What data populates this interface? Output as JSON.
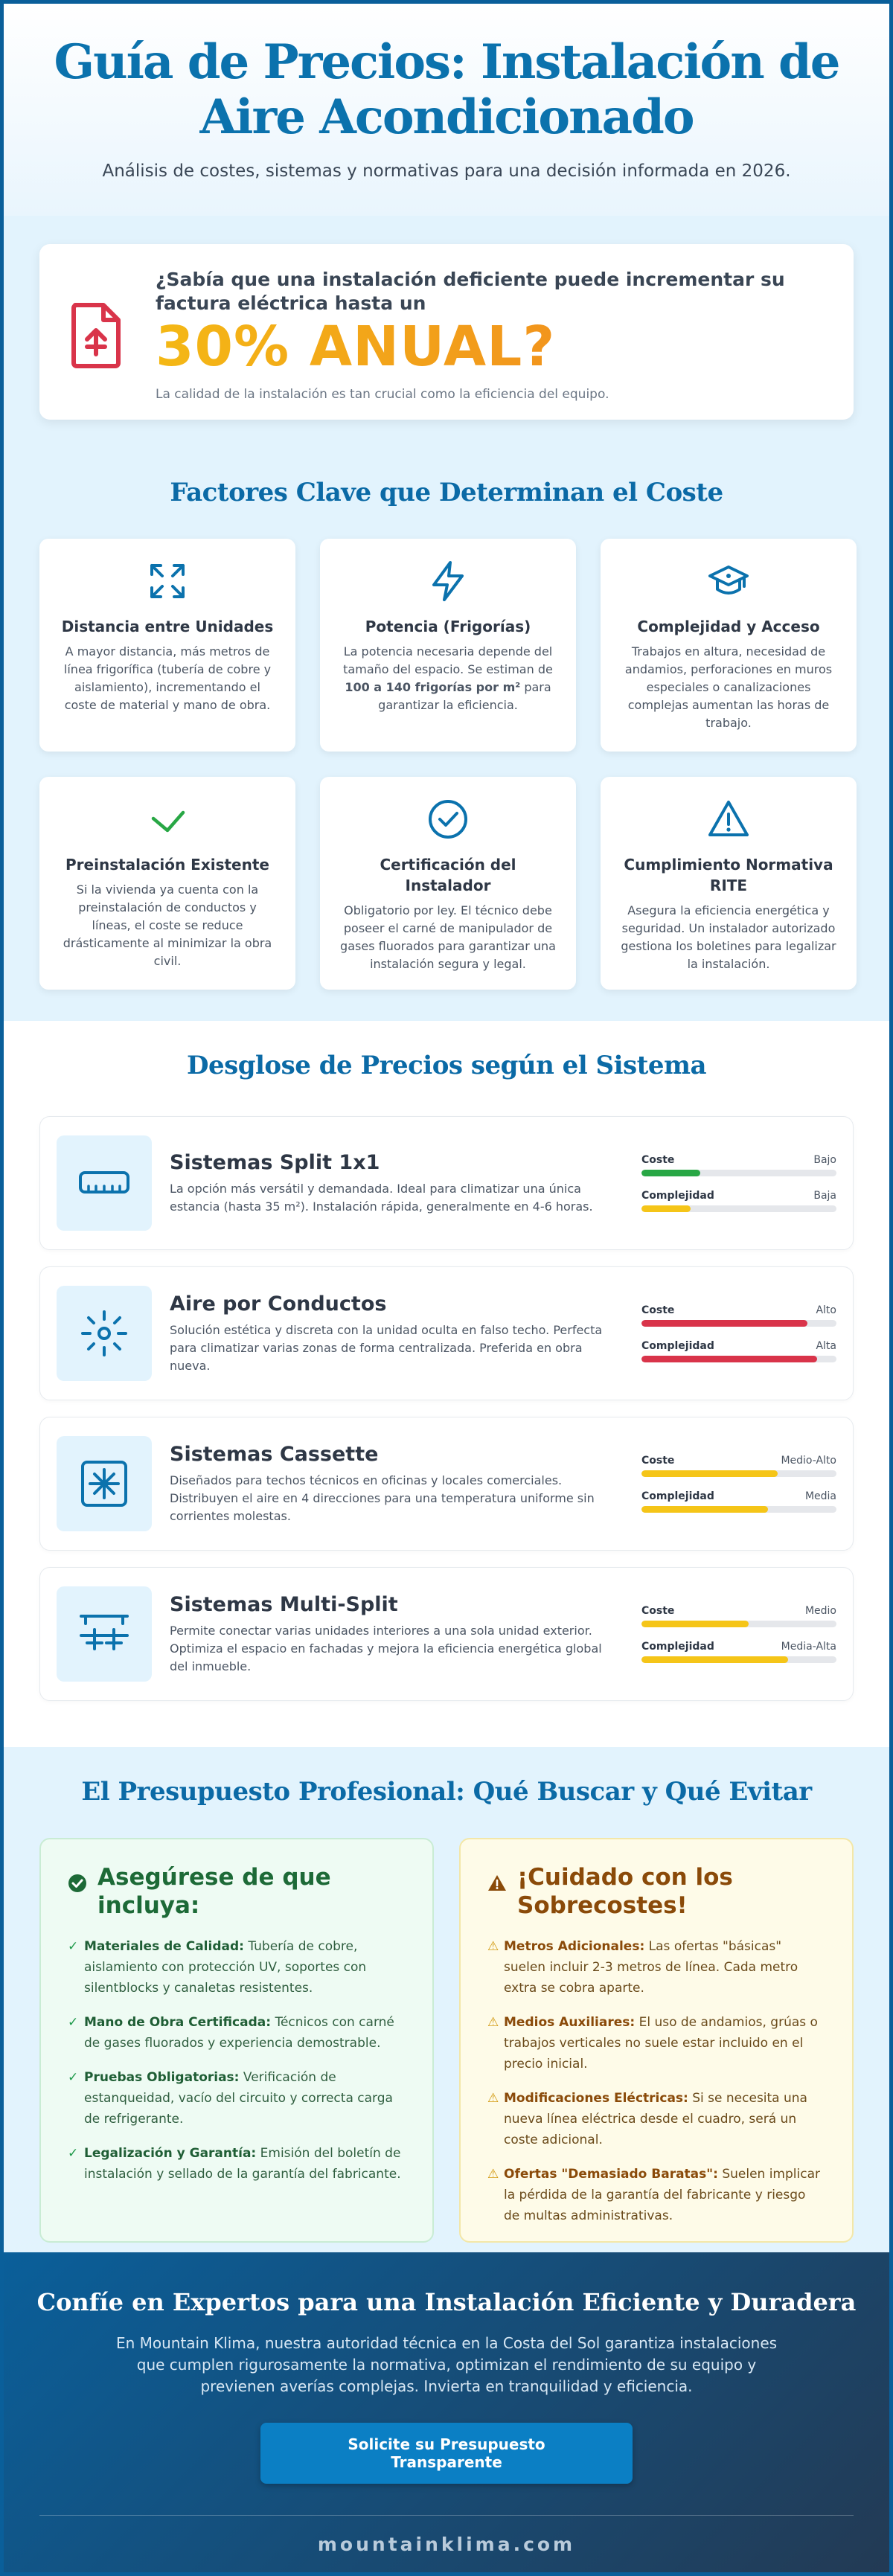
{
  "header": {
    "title": "Guía de Precios: Instalación de Aire Acondicionado",
    "subtitle": "Análisis de costes, sistemas y normativas para una decisión informada en 2026."
  },
  "stat": {
    "question": "¿Sabía que una instalación deficiente puede incrementar su factura eléctrica hasta un",
    "highlight": "30% ANUAL?",
    "note": "La calidad de la instalación es tan crucial como la eficiencia del equipo."
  },
  "factors": {
    "title": "Factores Clave que Determinan el Coste",
    "items": [
      {
        "icon": "expand-arrows-icon",
        "title": "Distancia entre Unidades",
        "text": "A mayor distancia, más metros de línea frigorífica (tubería de cobre y aislamiento), incrementando el coste de material y mano de obra."
      },
      {
        "icon": "lightning-bolt-icon",
        "title": "Potencia (Frigorías)",
        "text_before": "La potencia necesaria depende del tamaño del espacio. Se estiman de ",
        "text_bold": "100 a 140 frigorías por m²",
        "text_after": " para garantizar la eficiencia."
      },
      {
        "icon": "graduation-cap-icon",
        "title": "Complejidad y Acceso",
        "text": "Trabajos en altura, necesidad de andamios, perforaciones en muros especiales o canalizaciones complejas aumentan las horas de trabajo."
      },
      {
        "icon": "check-mark-icon",
        "title": "Preinstalación Existente",
        "text": "Si la vivienda ya cuenta con la preinstalación de conductos y líneas, el coste se reduce drásticamente al minimizar la obra civil."
      },
      {
        "icon": "check-circle-icon",
        "title": "Certificación del Instalador",
        "text": "Obligatorio por ley. El técnico debe poseer el carné de manipulador de gases fluorados para garantizar una instalación segura y legal."
      },
      {
        "icon": "warning-triangle-icon",
        "title": "Cumplimiento Normativa RITE",
        "text": "Asegura la eficiencia energética y seguridad. Un instalador autorizado gestiona los boletines para legalizar la instalación."
      }
    ]
  },
  "systems": {
    "title": "Desglose de Precios según el Sistema",
    "cost_label": "Coste",
    "complexity_label": "Complejidad",
    "items": [
      {
        "icon": "split-unit-icon",
        "name": "Sistemas Split 1x1",
        "text": "La opción más versátil y demandada. Ideal para climatizar una única estancia (hasta 35 m²). Instalación rápida, generalmente en 4-6 horas.",
        "cost_value": "Bajo",
        "cost_level": 0.3,
        "cost_color": "#28a745",
        "complexity_value": "Baja",
        "complexity_level": 0.25,
        "complexity_color": "#f5c518"
      },
      {
        "icon": "ducted-air-icon",
        "name": "Aire por Conductos",
        "text": "Solución estética y discreta con la unidad oculta en falso techo. Perfecta para climatizar varias zonas de forma centralizada. Preferida en obra nueva.",
        "cost_value": "Alto",
        "cost_level": 0.85,
        "cost_color": "#d9344a",
        "complexity_value": "Alta",
        "complexity_level": 0.9,
        "complexity_color": "#d9344a"
      },
      {
        "icon": "cassette-unit-icon",
        "name": "Sistemas Cassette",
        "text": "Diseñados para techos técnicos en oficinas y locales comerciales. Distribuyen el aire en 4 direcciones para una temperatura uniforme sin corrientes molestas.",
        "cost_value": "Medio-Alto",
        "cost_level": 0.7,
        "cost_color": "#f5c518",
        "complexity_value": "Media",
        "complexity_level": 0.65,
        "complexity_color": "#f5c518"
      },
      {
        "icon": "multi-split-icon",
        "name": "Sistemas Multi-Split",
        "text": "Permite conectar varias unidades interiores a una sola unidad exterior. Optimiza el espacio en fachadas y mejora la eficiencia energética global del inmueble.",
        "cost_value": "Medio",
        "cost_level": 0.55,
        "cost_color": "#f5c518",
        "complexity_value": "Media-Alta",
        "complexity_level": 0.75,
        "complexity_color": "#f5c518"
      }
    ]
  },
  "budget": {
    "title": "El Presupuesto Profesional: Qué Buscar y Qué Evitar",
    "good": {
      "title": "Asegúrese de que incluya:",
      "items": [
        {
          "bold": "Materiales de Calidad:",
          "text": " Tubería de cobre, aislamiento con protección UV, soportes con silentblocks y canaletas resistentes."
        },
        {
          "bold": "Mano de Obra Certificada:",
          "text": " Técnicos con carné de gases fluorados y experiencia demostrable."
        },
        {
          "bold": "Pruebas Obligatorias:",
          "text": " Verificación de estanqueidad, vacío del circuito y correcta carga de refrigerante."
        },
        {
          "bold": "Legalización y Garantía:",
          "text": " Emisión del boletín de instalación y sellado de la garantía del fabricante."
        }
      ]
    },
    "bad": {
      "title": "¡Cuidado con los Sobrecostes!",
      "items": [
        {
          "bold": "Metros Adicionales:",
          "text": " Las ofertas \"básicas\" suelen incluir 2-3 metros de línea. Cada metro extra se cobra aparte."
        },
        {
          "bold": "Medios Auxiliares:",
          "text": " El uso de andamios, grúas o trabajos verticales no suele estar incluido en el precio inicial."
        },
        {
          "bold": "Modificaciones Eléctricas:",
          "text": " Si se necesita una nueva línea eléctrica desde el cuadro, será un coste adicional."
        },
        {
          "bold": "Ofertas \"Demasiado Baratas\":",
          "text": " Suelen implicar la pérdida de la garantía del fabricante y riesgo de multas administrativas."
        }
      ]
    }
  },
  "footer": {
    "title": "Confíe en Expertos para una Instalación Eficiente y Duradera",
    "text": "En Mountain Klima, nuestra autoridad técnica en la Costa del Sol garantiza instalaciones que cumplen rigurosamente la normativa, optimizan el rendimiento de su equipo y previenen averías complejas. Invierta en tranquilidad y eficiencia.",
    "cta": "Solicite su Presupuesto Transparente",
    "domain": "mountainklima.com"
  },
  "colors": {
    "brand": "#0b72ad",
    "accent_orange": "#f07d22",
    "accent_yellow": "#f4b815",
    "danger": "#d9344a",
    "success": "#28a745"
  }
}
